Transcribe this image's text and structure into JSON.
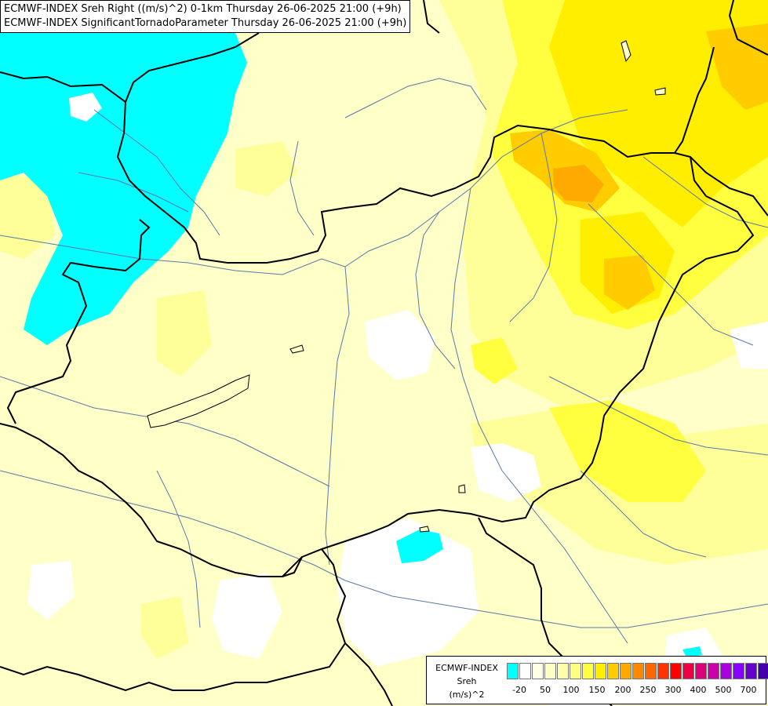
{
  "header": {
    "line1": "ECMWF-INDEX Sreh Right ((m/s)^2) 0-1km Thursday 26-06-2025 21:00 (+9h)",
    "line2": "ECMWF-INDEX SignificantTornadoParameter Thursday 26-06-2025 21:00 (+9h)"
  },
  "legend": {
    "title_line1": "ECMWF-INDEX",
    "title_line2": "Sreh",
    "title_line3": "(m/s)^2",
    "colors": [
      "#00ffff",
      "#ffffff",
      "#ffffe6",
      "#ffffc8",
      "#ffffaa",
      "#ffff80",
      "#ffff40",
      "#ffee00",
      "#ffcc00",
      "#ffaa00",
      "#ff8800",
      "#ff6600",
      "#ff3300",
      "#ff0000",
      "#ee0044",
      "#dd0077",
      "#cc00aa",
      "#aa00dd",
      "#8800ff",
      "#6600cc",
      "#4400aa",
      "#220088"
    ],
    "ticks": [
      "-20",
      "50",
      "100",
      "150",
      "200",
      "250",
      "300",
      "400",
      "500",
      "700"
    ]
  },
  "colors": {
    "negative": "#00ffff",
    "near_zero": "#ffffff",
    "weak": "#ffffc8",
    "low": "#ffff99",
    "moderate": "#ffff40",
    "elevated": "#ffee00",
    "high": "#ffcc00",
    "very_high": "#ffaa00",
    "border": "#000000",
    "river": "#5a78aa"
  }
}
